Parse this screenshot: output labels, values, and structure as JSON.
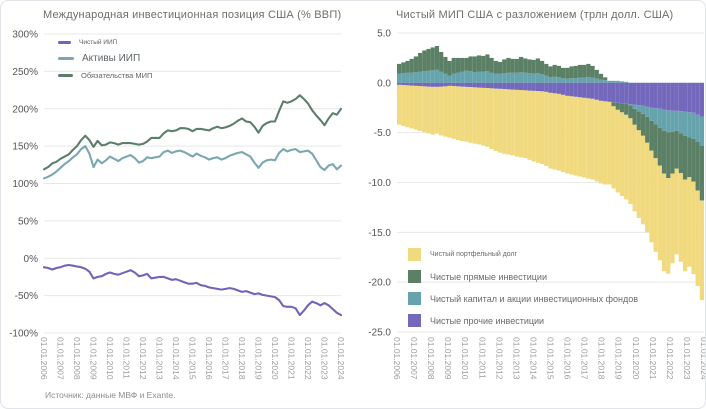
{
  "source_note": "Источник: данные МВФ и Exante.",
  "x_tick_labels": [
    "01.01.2006",
    "01.01.2007",
    "01.01.2008",
    "01.01.2009",
    "01.01.2010",
    "01.01.2011",
    "01.01.2012",
    "01.01.2013",
    "01.01.2014",
    "01.01.2015",
    "01.01.2016",
    "01.01.2017",
    "01.01.2018",
    "01.01.2019",
    "01.01.2020",
    "01.01.2021",
    "01.01.2022",
    "01.01.2023",
    "01.01.2024"
  ],
  "colors": {
    "grid": "#e8e8e8",
    "axis_text": "#555555",
    "x_tick_text": "#9b9b9b",
    "title_text": "#6e6e6e"
  },
  "chart_data": [
    {
      "type": "line",
      "title": "Международная инвестиционная позиция США (% ВВП)",
      "x_start_year": 2006,
      "x_step_years": 0.25,
      "ylim": [
        -100,
        300
      ],
      "y_tick_values": [
        300,
        250,
        200,
        150,
        100,
        50,
        0,
        -50,
        -100
      ],
      "y_tick_labels": [
        "300%",
        "250%",
        "200%",
        "150%",
        "100%",
        "50%",
        "0%",
        "-50%",
        "-100%"
      ],
      "grid": "horizontal",
      "legend_position": "top-left",
      "series": [
        {
          "name": "Чистый ИИП",
          "color": "#6F66B8",
          "values": [
            -12,
            -13,
            -15,
            -13,
            -12,
            -10,
            -9,
            -10,
            -11,
            -12,
            -14,
            -18,
            -27,
            -25,
            -24,
            -21,
            -19,
            -21,
            -22,
            -20,
            -18,
            -16,
            -19,
            -24,
            -23,
            -21,
            -27,
            -26,
            -25,
            -25,
            -27,
            -29,
            -28,
            -30,
            -32,
            -34,
            -34,
            -33,
            -36,
            -37,
            -39,
            -40,
            -41,
            -42,
            -41,
            -40,
            -41,
            -43,
            -45,
            -44,
            -46,
            -48,
            -47,
            -49,
            -50,
            -51,
            -52,
            -56,
            -64,
            -65,
            -65,
            -67,
            -76,
            -70,
            -63,
            -58,
            -60,
            -63,
            -60,
            -63,
            -68,
            -73,
            -76
          ]
        },
        {
          "name": "Активы ИИП",
          "color": "#7AA7B1",
          "values": [
            107,
            109,
            112,
            116,
            121,
            126,
            130,
            135,
            139,
            146,
            150,
            140,
            122,
            132,
            127,
            131,
            136,
            133,
            130,
            134,
            136,
            138,
            134,
            128,
            130,
            135,
            134,
            135,
            136,
            142,
            144,
            141,
            143,
            144,
            142,
            139,
            136,
            140,
            137,
            135,
            132,
            134,
            135,
            132,
            134,
            137,
            139,
            141,
            142,
            139,
            136,
            128,
            121,
            128,
            131,
            132,
            131,
            141,
            146,
            143,
            145,
            146,
            142,
            143,
            144,
            140,
            131,
            122,
            118,
            124,
            126,
            119,
            124
          ]
        },
        {
          "name": "Обязательства МИП",
          "color": "#5C7F6B",
          "values": [
            119,
            122,
            127,
            129,
            133,
            136,
            139,
            145,
            150,
            158,
            164,
            158,
            149,
            157,
            151,
            152,
            155,
            154,
            152,
            154,
            154,
            154,
            153,
            152,
            153,
            156,
            161,
            161,
            161,
            167,
            171,
            170,
            171,
            174,
            174,
            173,
            170,
            173,
            173,
            172,
            171,
            174,
            176,
            174,
            175,
            177,
            180,
            184,
            187,
            183,
            182,
            176,
            168,
            177,
            181,
            183,
            183,
            197,
            210,
            208,
            210,
            213,
            218,
            213,
            207,
            198,
            191,
            185,
            178,
            187,
            194,
            192,
            200
          ]
        }
      ]
    },
    {
      "type": "bar",
      "stacked": true,
      "title": "Чистый МИП США с разложением (трлн долл. США)",
      "x_start_year": 2006,
      "x_step_years": 0.25,
      "ylim": [
        -25,
        5
      ],
      "y_tick_values": [
        5,
        0,
        -5,
        -10,
        -15,
        -20,
        -25
      ],
      "y_tick_labels": [
        "5.0",
        "0.0",
        "-5.0",
        "-10.0",
        "-15.0",
        "-20.0",
        "-25.0"
      ],
      "grid": "horizontal",
      "legend_position": "bottom-left",
      "stack_render_order": [
        3,
        2,
        1,
        0
      ],
      "series": [
        {
          "name": "Чистый портфельный долг",
          "color": "#F0D97E",
          "values": [
            -4.0,
            -4.1,
            -4.2,
            -4.3,
            -4.4,
            -4.5,
            -4.6,
            -4.7,
            -4.8,
            -4.7,
            -4.9,
            -5.05,
            -5.2,
            -5.3,
            -5.4,
            -5.45,
            -5.5,
            -5.6,
            -5.65,
            -5.7,
            -5.8,
            -5.9,
            -6.1,
            -6.25,
            -6.4,
            -6.5,
            -6.55,
            -6.6,
            -6.7,
            -6.75,
            -6.8,
            -6.95,
            -7.1,
            -7.2,
            -7.3,
            -7.45,
            -7.6,
            -7.65,
            -7.7,
            -7.75,
            -7.8,
            -7.85,
            -7.9,
            -7.95,
            -8.0,
            -8.05,
            -8.1,
            -8.2,
            -8.3,
            -8.35,
            -8.3,
            -8.25,
            -8.3,
            -8.4,
            -8.5,
            -8.6,
            -8.7,
            -8.8,
            -8.9,
            -9.0,
            -9.2,
            -9.4,
            -9.5,
            -9.8,
            -9.6,
            -9.0,
            -8.6,
            -8.9,
            -9.2,
            -9.0,
            -9.3,
            -9.6,
            -10.0
          ]
        },
        {
          "name": "Чистые прямые инвестиции",
          "color": "#5C8066",
          "values": [
            1.0,
            1.1,
            1.2,
            1.4,
            1.6,
            1.9,
            2.1,
            2.2,
            2.3,
            2.4,
            2.0,
            1.7,
            1.5,
            1.6,
            1.5,
            1.4,
            1.3,
            1.5,
            1.6,
            1.65,
            1.6,
            1.7,
            1.5,
            1.3,
            1.2,
            1.4,
            1.5,
            1.4,
            1.4,
            1.55,
            1.45,
            1.4,
            1.4,
            1.5,
            1.35,
            1.2,
            1.1,
            1.2,
            1.15,
            1.05,
            1.1,
            1.2,
            1.25,
            1.3,
            1.3,
            1.35,
            1.2,
            0.9,
            0.6,
            0.3,
            0.0,
            -0.4,
            -0.7,
            -0.9,
            -1.1,
            -1.3,
            -1.6,
            -1.9,
            -2.2,
            -2.6,
            -3.0,
            -3.4,
            -3.8,
            -4.3,
            -4.6,
            -4.2,
            -3.8,
            -4.0,
            -4.4,
            -4.0,
            -4.3,
            -4.9,
            -5.5
          ]
        },
        {
          "name": "Чистый капитал и акции инвестиционных фондов",
          "color": "#67A3AD",
          "values": [
            0.9,
            0.95,
            1.0,
            1.0,
            1.05,
            1.1,
            1.15,
            1.2,
            1.25,
            1.3,
            1.1,
            0.9,
            0.7,
            0.9,
            1.0,
            1.1,
            1.2,
            1.15,
            1.05,
            1.1,
            1.1,
            1.15,
            1.0,
            0.9,
            0.9,
            0.95,
            1.0,
            1.0,
            1.0,
            1.05,
            1.0,
            0.95,
            0.9,
            0.95,
            0.85,
            0.7,
            0.55,
            0.6,
            0.55,
            0.45,
            0.4,
            0.45,
            0.45,
            0.5,
            0.5,
            0.55,
            0.5,
            0.4,
            0.3,
            0.25,
            0.2,
            0.2,
            0.2,
            0.15,
            0.1,
            -0.1,
            -0.4,
            -0.6,
            -0.8,
            -1.0,
            -1.3,
            -1.6,
            -1.9,
            -2.1,
            -2.2,
            -2.1,
            -2.0,
            -2.2,
            -2.4,
            -2.5,
            -2.6,
            -2.7,
            -2.9
          ]
        },
        {
          "name": "Чистые прочие инвестиции",
          "color": "#7468BC",
          "values": [
            -0.2,
            -0.22,
            -0.25,
            -0.28,
            -0.3,
            -0.32,
            -0.35,
            -0.38,
            -0.4,
            -0.4,
            -0.38,
            -0.35,
            -0.3,
            -0.32,
            -0.35,
            -0.38,
            -0.4,
            -0.42,
            -0.45,
            -0.48,
            -0.5,
            -0.52,
            -0.55,
            -0.58,
            -0.6,
            -0.62,
            -0.65,
            -0.68,
            -0.7,
            -0.72,
            -0.75,
            -0.78,
            -0.8,
            -0.82,
            -0.85,
            -0.9,
            -1.0,
            -1.05,
            -1.1,
            -1.2,
            -1.3,
            -1.35,
            -1.4,
            -1.45,
            -1.5,
            -1.55,
            -1.6,
            -1.7,
            -1.8,
            -1.85,
            -1.9,
            -1.95,
            -2.0,
            -2.05,
            -2.1,
            -2.15,
            -2.2,
            -2.25,
            -2.3,
            -2.4,
            -2.5,
            -2.55,
            -2.6,
            -2.7,
            -2.75,
            -2.8,
            -2.8,
            -2.85,
            -2.9,
            -2.95,
            -3.0,
            -3.2,
            -3.4
          ]
        }
      ]
    }
  ]
}
